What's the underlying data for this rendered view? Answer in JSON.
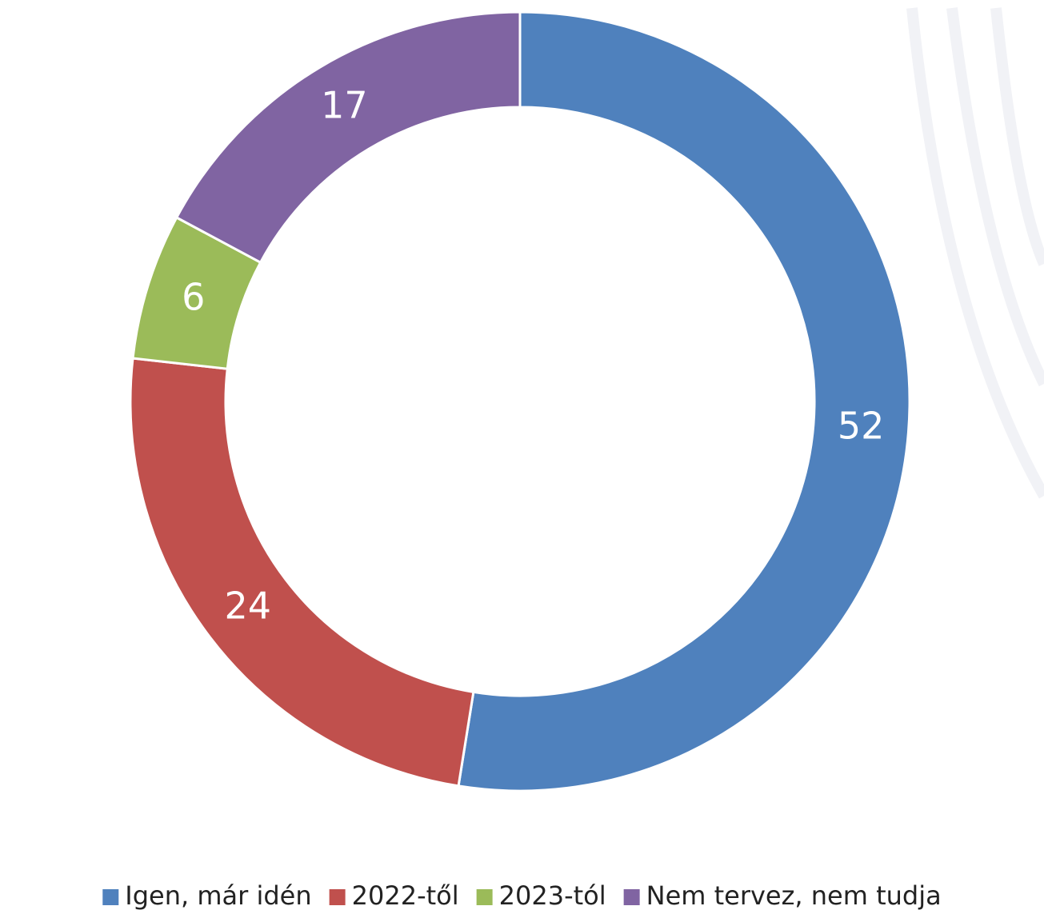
{
  "chart_data": {
    "type": "donut",
    "categories": [
      "Igen, már idén",
      "2022-től",
      "2023-tól",
      "Nem tervez, nem tudja"
    ],
    "values": [
      52,
      24,
      6,
      17
    ],
    "colors": [
      "#4f81bd",
      "#c0504d",
      "#9bbb59",
      "#8064a2"
    ],
    "legend": "bottom"
  }
}
